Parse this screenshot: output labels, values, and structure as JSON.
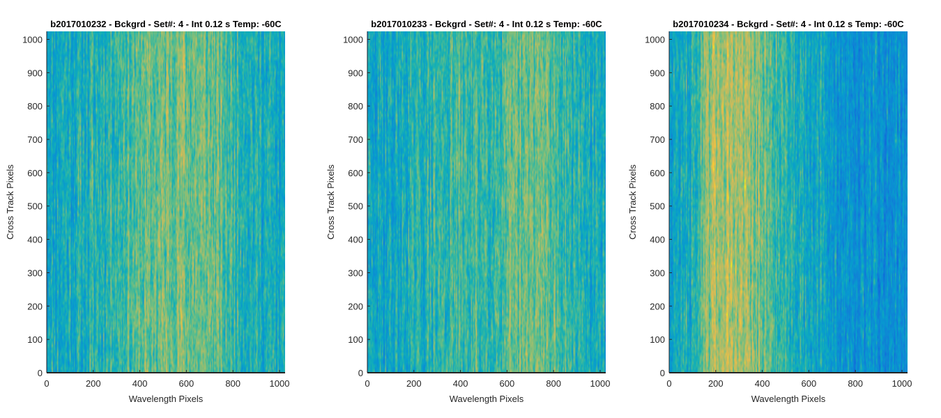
{
  "chart_data": [
    {
      "type": "heatmap",
      "title": "b2017010232 - Bckgrd - Set#: 4 - Int 0.12 s Temp: -60C",
      "xlabel": "Wavelength Pixels",
      "ylabel": "Cross Track Pixels",
      "xlim": [
        0,
        1024
      ],
      "ylim": [
        0,
        1024
      ],
      "xticks": [
        0,
        200,
        400,
        600,
        800,
        1000
      ],
      "yticks": [
        0,
        100,
        200,
        300,
        400,
        500,
        600,
        700,
        800,
        900,
        1000
      ],
      "colormap": "parula",
      "colorbar": false,
      "profile": {
        "x": [
          0,
          100,
          200,
          300,
          400,
          500,
          550,
          600,
          700,
          800,
          900,
          1024
        ],
        "level": [
          0.5,
          0.52,
          0.55,
          0.6,
          0.64,
          0.68,
          0.69,
          0.68,
          0.66,
          0.6,
          0.54,
          0.5
        ]
      }
    },
    {
      "type": "heatmap",
      "title": "b2017010233 - Bckgrd - Set#: 4 - Int 0.12 s Temp: -60C",
      "xlabel": "Wavelength Pixels",
      "ylabel": "Cross Track Pixels",
      "xlim": [
        0,
        1024
      ],
      "ylim": [
        0,
        1024
      ],
      "xticks": [
        0,
        200,
        400,
        600,
        800,
        1000
      ],
      "yticks": [
        0,
        100,
        200,
        300,
        400,
        500,
        600,
        700,
        800,
        900,
        1000
      ],
      "colormap": "parula",
      "colorbar": false,
      "profile": {
        "x": [
          0,
          100,
          200,
          300,
          400,
          500,
          600,
          700,
          750,
          800,
          900,
          1024
        ],
        "level": [
          0.48,
          0.5,
          0.53,
          0.58,
          0.6,
          0.6,
          0.62,
          0.66,
          0.67,
          0.64,
          0.56,
          0.5
        ]
      }
    },
    {
      "type": "heatmap",
      "title": "b2017010234 - Bckgrd - Set#: 4 - Int 0.12 s Temp: -60C",
      "xlabel": "Wavelength Pixels",
      "ylabel": "Cross Track Pixels",
      "xlim": [
        0,
        1024
      ],
      "ylim": [
        0,
        1024
      ],
      "xticks": [
        0,
        200,
        400,
        600,
        800,
        1000
      ],
      "yticks": [
        0,
        100,
        200,
        300,
        400,
        500,
        600,
        700,
        800,
        900,
        1000
      ],
      "colormap": "parula",
      "colorbar": false,
      "profile": {
        "x": [
          0,
          100,
          150,
          200,
          250,
          300,
          400,
          500,
          600,
          700,
          800,
          900,
          1024
        ],
        "level": [
          0.48,
          0.54,
          0.66,
          0.75,
          0.78,
          0.76,
          0.66,
          0.58,
          0.52,
          0.44,
          0.4,
          0.4,
          0.4
        ]
      }
    }
  ]
}
